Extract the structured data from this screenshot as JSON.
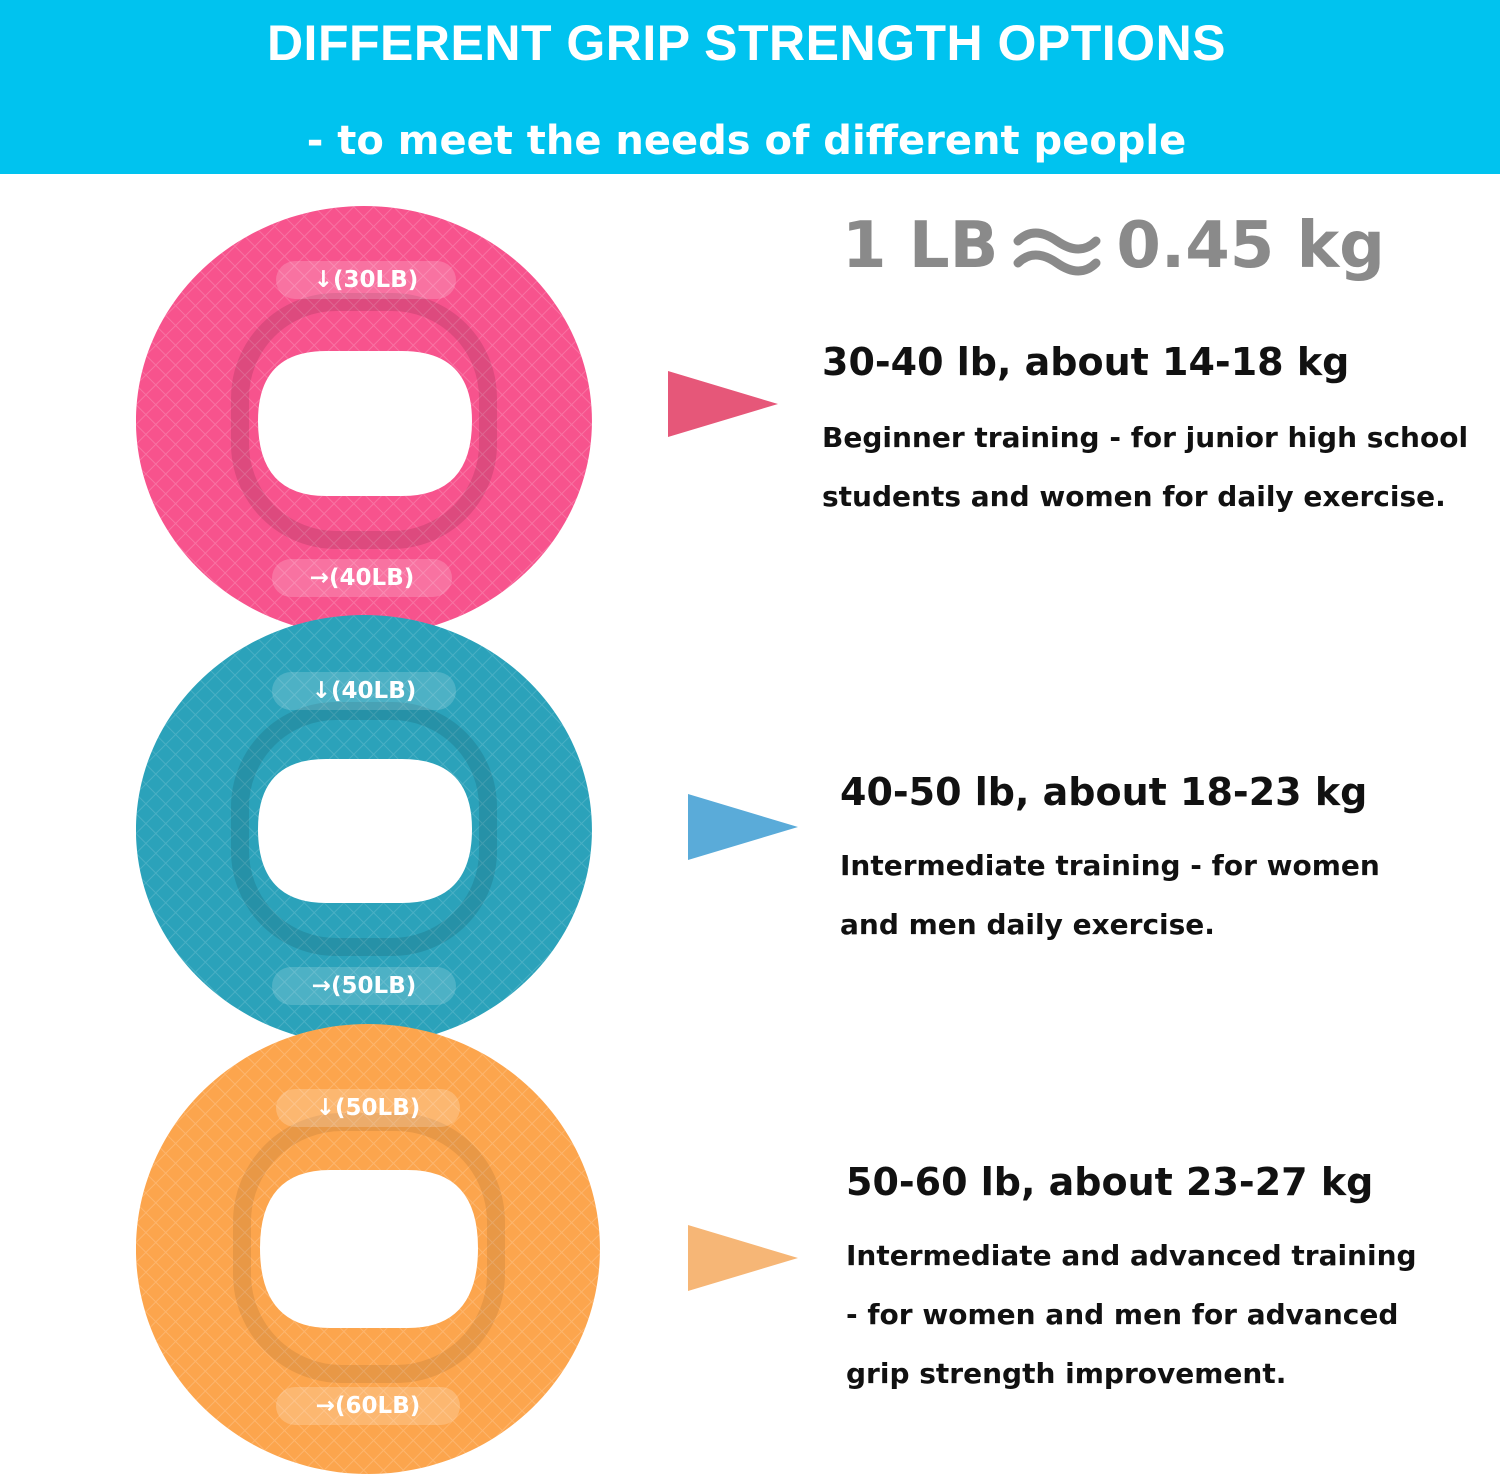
{
  "banner": {
    "title": "DIFFERENT GRIP STRENGTH OPTIONS",
    "subtitle": "- to meet the needs of different people",
    "color": "#00c3ef"
  },
  "conversion": {
    "left": "1 LB",
    "right": "0.45 kg",
    "symbol_icon": "approx-icon"
  },
  "options": [
    {
      "color": "#f7538d",
      "top_label": "↓(30LB)",
      "bottom_label": "→(40LB)",
      "heading": "30-40 lb, about 14-18 kg",
      "desc_lines": [
        "Beginner training - for junior high school",
        "students and women for daily exercise."
      ]
    },
    {
      "color": "#2ba2ba",
      "top_label": "↓(40LB)",
      "bottom_label": "→(50LB)",
      "heading": "40-50 lb, about 18-23 kg",
      "desc_lines": [
        "Intermediate training - for women",
        "and men daily exercise."
      ]
    },
    {
      "color": "#fca54d",
      "top_label": "↓(50LB)",
      "bottom_label": "→(60LB)",
      "heading": "50-60 lb, about 23-27 kg",
      "desc_lines": [
        "Intermediate and advanced training",
        "- for women and men for advanced",
        "grip strength improvement."
      ]
    }
  ],
  "arrow_colors": [
    "#e65779",
    "#5aabd9",
    "#f6b676"
  ]
}
